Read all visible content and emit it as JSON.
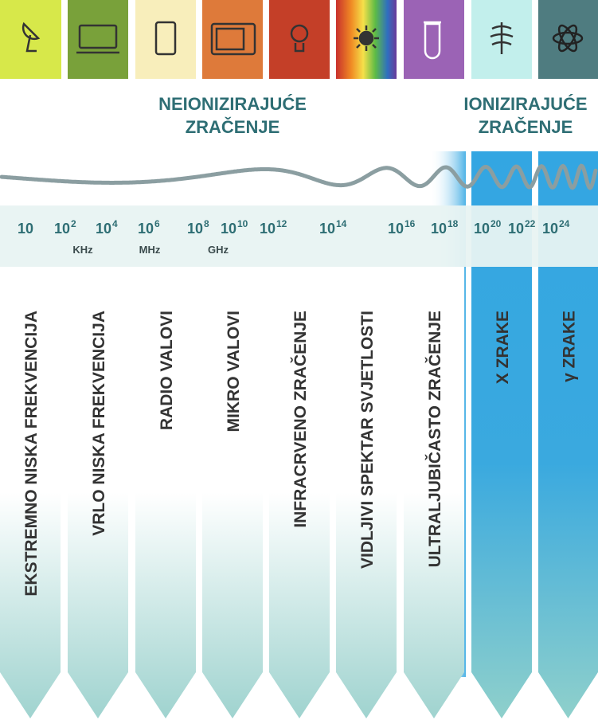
{
  "headings": {
    "non_ionizing": [
      "NEIONIZIRAJUĆE",
      "ZRAČENJE"
    ],
    "ionizing": [
      "IONIZIRAJUĆE",
      "ZRAČENJE"
    ]
  },
  "frequencies": [
    {
      "base": "10"
    },
    {
      "base": "10",
      "exp": "2"
    },
    {
      "base": "10",
      "exp": "4"
    },
    {
      "base": "10",
      "exp": "6"
    },
    {
      "base": "10",
      "exp": "8"
    },
    {
      "base": "10",
      "exp": "10"
    },
    {
      "base": "10",
      "exp": "12"
    },
    {
      "base": "10",
      "exp": "14"
    },
    {
      "base": "10",
      "exp": "16"
    },
    {
      "base": "10",
      "exp": "18"
    },
    {
      "base": "10",
      "exp": "20"
    },
    {
      "base": "10",
      "exp": "22"
    },
    {
      "base": "10",
      "exp": "24"
    }
  ],
  "units": [
    "KHz",
    "MHz",
    "GHz"
  ],
  "bands": [
    "EKSTREMNO NISKA FREKVENCIJA",
    "VRLO NISKA FREKVENCIJA",
    "RADIO VALOVI",
    "MIKRO VALOVI",
    "INFRACRVENO ZRAČENJE",
    "VIDLJIVI SPEKTAR SVJETLOSTI",
    "ULTRALJUBIČASTO ZRAČENJE",
    "X ZRAKE",
    "γ ZRAKE"
  ]
}
